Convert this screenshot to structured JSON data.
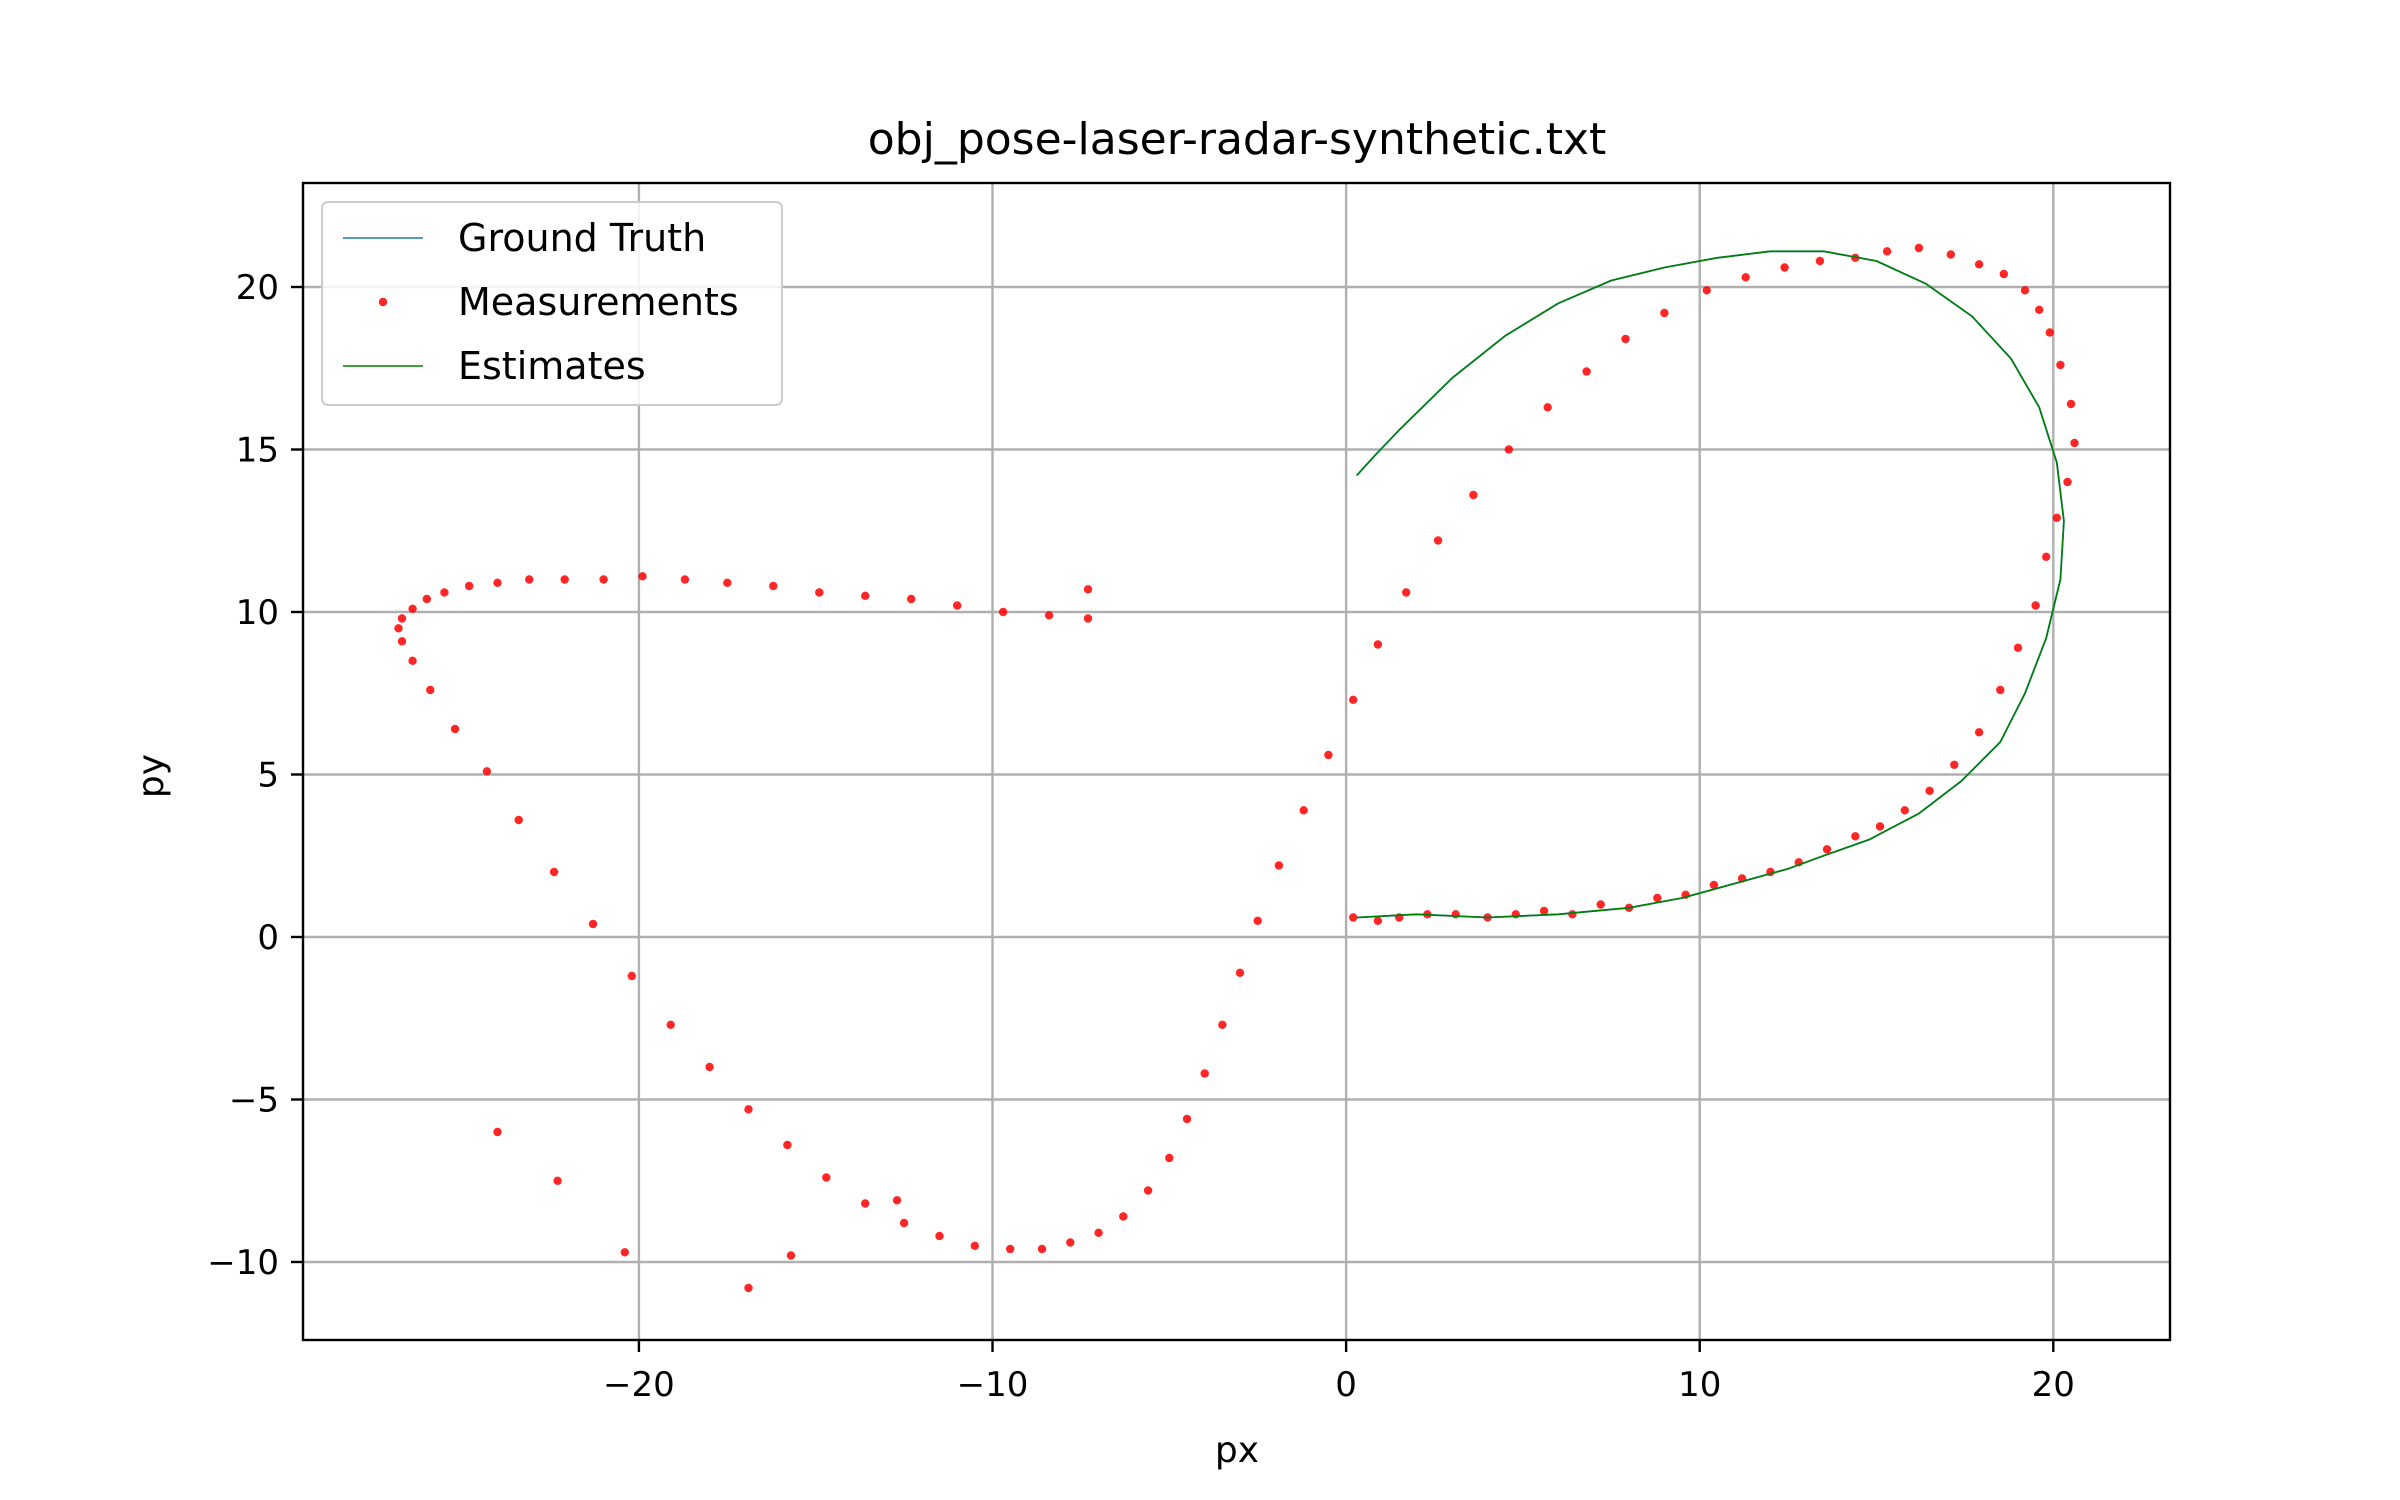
{
  "chart_data": {
    "type": "line",
    "title": "obj_pose-laser-radar-synthetic.txt",
    "xlabel": "px",
    "ylabel": "py",
    "xlim": [
      -29.5,
      23.3
    ],
    "ylim": [
      -12.4,
      23.2
    ],
    "xticks": [
      -20,
      -10,
      0,
      10,
      20
    ],
    "yticks": [
      -10,
      -5,
      0,
      5,
      10,
      15,
      20
    ],
    "xtick_labels": [
      "−20",
      "−10",
      "0",
      "10",
      "20"
    ],
    "ytick_labels": [
      "−10",
      "−5",
      "0",
      "5",
      "10",
      "15",
      "20"
    ],
    "grid": true,
    "legend_position": "top-left",
    "colors": {
      "ground_truth": "#1f77b4",
      "measurements": "#ff0000",
      "estimates": "#008000"
    },
    "series": [
      {
        "name": "Ground Truth",
        "style": "line",
        "x": [
          0.3,
          2,
          4,
          6,
          8,
          9.5,
          10.5,
          11.5,
          12.5,
          13.5,
          14.8,
          16.2,
          17.4,
          18.5,
          19.2,
          19.8,
          20.2,
          20.3,
          20.1,
          19.6,
          18.8,
          17.7,
          16.4,
          15,
          13.5,
          12,
          10.5,
          9,
          7.5,
          6,
          4.5,
          3,
          1.5,
          0.8,
          0.3
        ],
        "y": [
          0.6,
          0.7,
          0.6,
          0.7,
          0.9,
          1.2,
          1.5,
          1.8,
          2.1,
          2.5,
          3,
          3.8,
          4.8,
          6,
          7.5,
          9.2,
          11,
          12.8,
          14.6,
          16.3,
          17.8,
          19.1,
          20.1,
          20.8,
          21.1,
          21.1,
          20.9,
          20.6,
          20.2,
          19.5,
          18.5,
          17.2,
          15.6,
          14.8,
          14.2
        ]
      },
      {
        "name": "Measurements",
        "style": "markers",
        "x": [
          0.2,
          0.9,
          1.5,
          2.3,
          3.1,
          4,
          4.8,
          5.6,
          6.4,
          7.2,
          8,
          8.8,
          9.6,
          10.4,
          11.2,
          12,
          12.8,
          13.6,
          14.4,
          15.1,
          15.8,
          16.5,
          17.2,
          17.9,
          18.5,
          19,
          19.5,
          19.8,
          20.1,
          20.4,
          20.6,
          20.5,
          20.2,
          19.9,
          19.6,
          19.2,
          18.6,
          17.9,
          17.1,
          16.2,
          15.3,
          14.4,
          13.4,
          12.4,
          11.3,
          10.2,
          9,
          7.9,
          6.8,
          5.7,
          4.6,
          3.6,
          2.6,
          1.7,
          0.9,
          0.2,
          -0.5,
          -1.2,
          -1.9,
          -2.5,
          -3,
          -3.5,
          -4,
          -4.5,
          -5,
          -5.6,
          -6.3,
          -7,
          -7.8,
          -8.6,
          -9.5,
          -10.5,
          -11.5,
          -12.5,
          -13.6,
          -14.7,
          -15.8,
          -16.9,
          -18,
          -19.1,
          -20.2,
          -21.3,
          -22.4,
          -23.4,
          -24.3,
          -25.2,
          -25.9,
          -26.4,
          -26.7,
          -26.8,
          -26.7,
          -26.4,
          -26,
          -25.5,
          -24.8,
          -24,
          -23.1,
          -22.1,
          -21,
          -19.9,
          -18.7,
          -17.5,
          -16.2,
          -14.9,
          -13.6,
          -12.3,
          -11,
          -9.7,
          -8.4,
          -7.3,
          -16.9,
          -20.4,
          -24,
          -22.3,
          -15.7,
          -12.7,
          -7.3
        ],
        "y": [
          0.6,
          0.5,
          0.6,
          0.7,
          0.7,
          0.6,
          0.7,
          0.8,
          0.7,
          1,
          0.9,
          1.2,
          1.3,
          1.6,
          1.8,
          2,
          2.3,
          2.7,
          3.1,
          3.4,
          3.9,
          4.5,
          5.3,
          6.3,
          7.6,
          8.9,
          10.2,
          11.7,
          12.9,
          14,
          15.2,
          16.4,
          17.6,
          18.6,
          19.3,
          19.9,
          20.4,
          20.7,
          21,
          21.2,
          21.1,
          20.9,
          20.8,
          20.6,
          20.3,
          19.9,
          19.2,
          18.4,
          17.4,
          16.3,
          15,
          13.6,
          12.2,
          10.6,
          9,
          7.3,
          5.6,
          3.9,
          2.2,
          0.5,
          -1.1,
          -2.7,
          -4.2,
          -5.6,
          -6.8,
          -7.8,
          -8.6,
          -9.1,
          -9.4,
          -9.6,
          -9.6,
          -9.5,
          -9.2,
          -8.8,
          -8.2,
          -7.4,
          -6.4,
          -5.3,
          -4,
          -2.7,
          -1.2,
          0.4,
          2,
          3.6,
          5.1,
          6.4,
          7.6,
          8.5,
          9.1,
          9.5,
          9.8,
          10.1,
          10.4,
          10.6,
          10.8,
          10.9,
          11,
          11,
          11,
          11.1,
          11,
          10.9,
          10.8,
          10.6,
          10.5,
          10.4,
          10.2,
          10,
          9.9,
          9.8,
          -10.8,
          -9.7,
          -6,
          -7.5,
          -9.8,
          -8.1,
          10.7
        ]
      },
      {
        "name": "Estimates",
        "style": "line",
        "x": [
          0.3,
          2,
          4,
          6,
          8,
          9.5,
          10.5,
          11.5,
          12.5,
          13.5,
          14.8,
          16.2,
          17.4,
          18.5,
          19.2,
          19.8,
          20.2,
          20.3,
          20.1,
          19.6,
          18.8,
          17.7,
          16.4,
          15,
          13.5,
          12,
          10.5,
          9,
          7.5,
          6,
          4.5,
          3,
          1.5,
          0.8,
          0.3
        ],
        "y": [
          0.6,
          0.7,
          0.6,
          0.7,
          0.9,
          1.2,
          1.5,
          1.8,
          2.1,
          2.5,
          3,
          3.8,
          4.8,
          6,
          7.5,
          9.2,
          11,
          12.8,
          14.6,
          16.3,
          17.8,
          19.1,
          20.1,
          20.8,
          21.1,
          21.1,
          20.9,
          20.6,
          20.2,
          19.5,
          18.5,
          17.2,
          15.6,
          14.8,
          14.2
        ]
      }
    ]
  }
}
